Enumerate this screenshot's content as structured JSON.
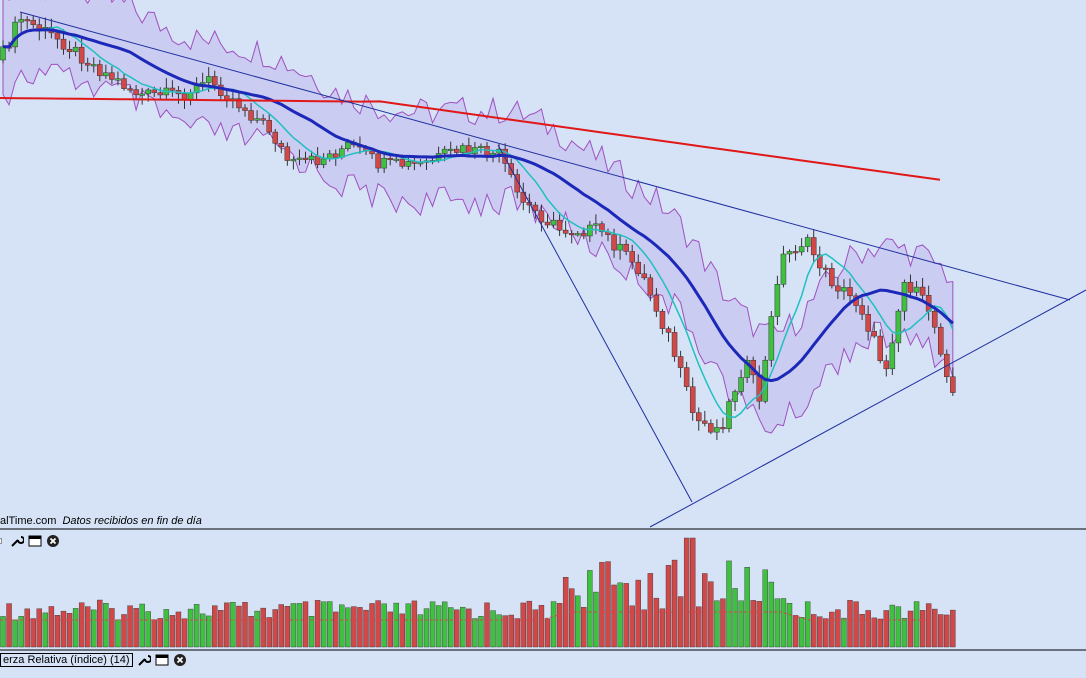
{
  "chart_data": {
    "type": "candlestick",
    "overlays": [
      {
        "style": "bollinger-band",
        "fill": "#c8c8f0"
      },
      {
        "style": "moving-average",
        "color": "#20c0c0"
      },
      {
        "style": "moving-average",
        "color": "#1c28b8"
      },
      {
        "style": "moving-average",
        "color": "#e01818"
      }
    ],
    "trendlines": 3,
    "volume_panel": true,
    "grid": false,
    "colors": {
      "up": "#40c040",
      "down": "#d04848",
      "background": "#d6e3f7"
    }
  },
  "footer": {
    "source": "alTime.com",
    "status": "Datos recibidos en fin de día"
  },
  "volume_panel": {
    "icons": [
      "wrench-icon",
      "window-icon",
      "close-icon"
    ]
  },
  "indicator_panel": {
    "label": "erza Relativa (índice) (14)",
    "icons": [
      "wrench-icon",
      "window-icon",
      "close-icon"
    ]
  }
}
